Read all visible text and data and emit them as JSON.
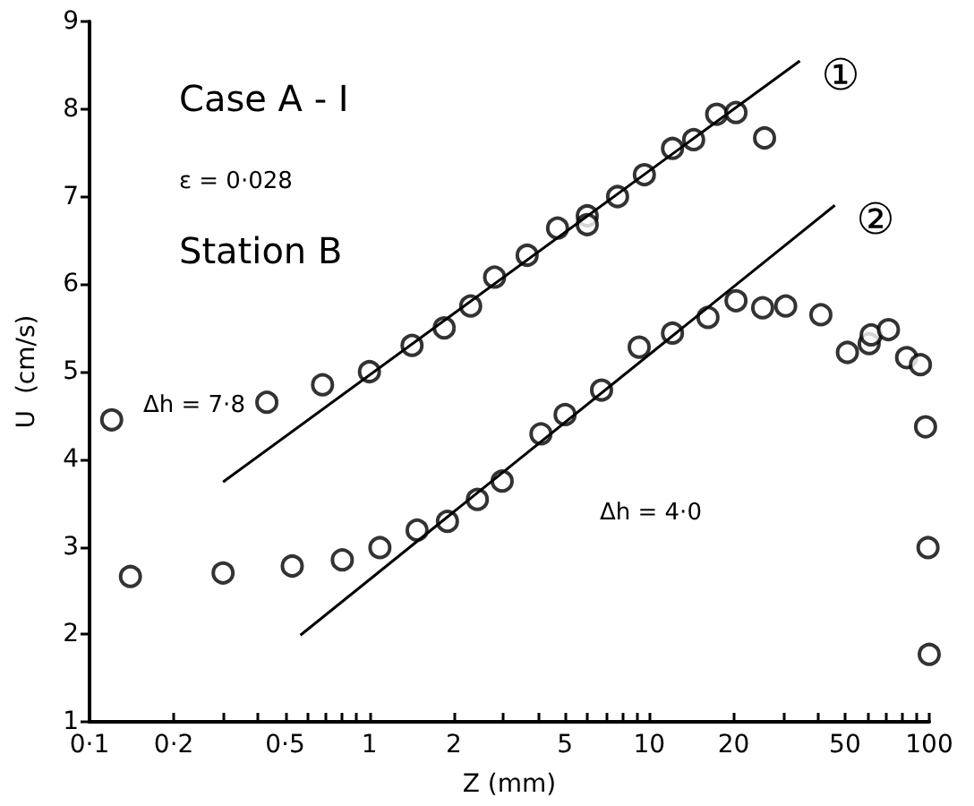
{
  "chart_data": {
    "type": "scatter",
    "xlabel": "Z (mm)",
    "ylabel": "U  (cm/s)",
    "log": "x",
    "xlim": [
      0.1,
      100
    ],
    "xticks": [
      {
        "value": 0.1,
        "label": "0·1"
      },
      {
        "value": 0.2,
        "label": "0·2"
      },
      {
        "value": 0.3,
        "label": null
      },
      {
        "value": 0.4,
        "label": null
      },
      {
        "value": 0.5,
        "label": "0·5"
      },
      {
        "value": 0.6,
        "label": null
      },
      {
        "value": 0.7,
        "label": null
      },
      {
        "value": 0.8,
        "label": null
      },
      {
        "value": 0.9,
        "label": null
      },
      1,
      2,
      {
        "value": 3,
        "label": null
      },
      {
        "value": 4,
        "label": null
      },
      5,
      {
        "value": 6,
        "label": null
      },
      {
        "value": 7,
        "label": null
      },
      {
        "value": 8,
        "label": null
      },
      {
        "value": 9,
        "label": null
      },
      10,
      20,
      {
        "value": 30,
        "label": null
      },
      {
        "value": 40,
        "label": null
      },
      50,
      {
        "value": 60,
        "label": null
      },
      {
        "value": 70,
        "label": null
      },
      {
        "value": 80,
        "label": null
      },
      {
        "value": 90,
        "label": null
      },
      100
    ],
    "ylim": [
      1,
      9
    ],
    "yticks": [
      1,
      2,
      3,
      4,
      5,
      6,
      7,
      8,
      9
    ],
    "grid": false,
    "legend": false,
    "series": [
      {
        "marker": "circle",
        "color": "#000000",
        "x": [
          0.12,
          0.14,
          0.3,
          0.43,
          0.53,
          0.68,
          0.8,
          1.0,
          1.09,
          1.42,
          1.48,
          1.85,
          1.9,
          2.3,
          2.43,
          2.8,
          2.98,
          3.66,
          4.1,
          4.7,
          5.0,
          6.0,
          6.0,
          6.75,
          7.7,
          9.2,
          9.6,
          12.1,
          12.1,
          14.4,
          16.2,
          17.4,
          20.4,
          20.4,
          25.4,
          25.8,
          30.7,
          41,
          51,
          61,
          62,
          71.5,
          83,
          93,
          97,
          99,
          100
        ],
        "values": [
          4.45,
          2.66,
          2.7,
          4.65,
          2.78,
          4.85,
          2.85,
          5.0,
          2.99,
          5.3,
          3.19,
          5.5,
          3.29,
          5.75,
          3.54,
          6.08,
          3.75,
          6.33,
          4.29,
          6.64,
          4.51,
          6.78,
          6.68,
          4.79,
          7.0,
          5.28,
          7.25,
          7.55,
          5.44,
          7.65,
          5.62,
          7.94,
          7.96,
          5.81,
          5.73,
          7.67,
          5.75,
          5.65,
          5.22,
          5.32,
          5.42,
          5.48,
          5.16,
          5.08,
          4.37,
          2.99,
          1.77
        ]
      },
      {
        "type": "line",
        "name": "①",
        "marker": "none",
        "line_style": "solid",
        "color": "#000000",
        "x": [
          0.3,
          34.5
        ],
        "values": [
          3.74,
          8.55
        ]
      },
      {
        "type": "line",
        "name": "②",
        "marker": "none",
        "line_style": "solid",
        "color": "#000000",
        "x": [
          0.567,
          46
        ],
        "values": [
          1.99,
          6.9
        ]
      }
    ],
    "annotations": [
      "Case A - I",
      "ε = 0·028",
      "Station B",
      "Δh = 7·8",
      "Δh = 4·0"
    ]
  }
}
